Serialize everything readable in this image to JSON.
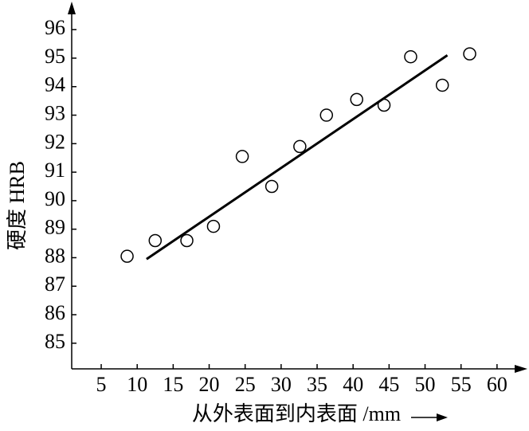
{
  "chart_data": {
    "type": "scatter",
    "x_label": "从外表面到内表面 /mm",
    "y_label": "硬度 HRB",
    "xlim": [
      0.9,
      64
    ],
    "ylim": [
      84.1,
      96.9
    ],
    "xticks": [
      5,
      10,
      15,
      20,
      25,
      30,
      35,
      40,
      45,
      50,
      55,
      60
    ],
    "yticks": [
      85,
      86,
      87,
      88,
      89,
      90,
      91,
      92,
      93,
      94,
      95,
      96
    ],
    "series": [
      {
        "color": "#000000",
        "x": [
          8.6,
          12.5,
          16.9,
          20.6,
          24.6,
          28.7,
          32.6,
          36.3,
          40.5,
          44.3,
          48.0,
          52.4,
          56.2
        ],
        "values": [
          88.05,
          88.6,
          88.6,
          89.1,
          91.55,
          90.5,
          91.9,
          93.0,
          93.55,
          93.35,
          95.05,
          94.05,
          95.15
        ]
      }
    ],
    "trend_line": {
      "color": "#000000",
      "x": [
        11.3,
        53.1
      ],
      "values": [
        87.95,
        95.1
      ]
    }
  }
}
